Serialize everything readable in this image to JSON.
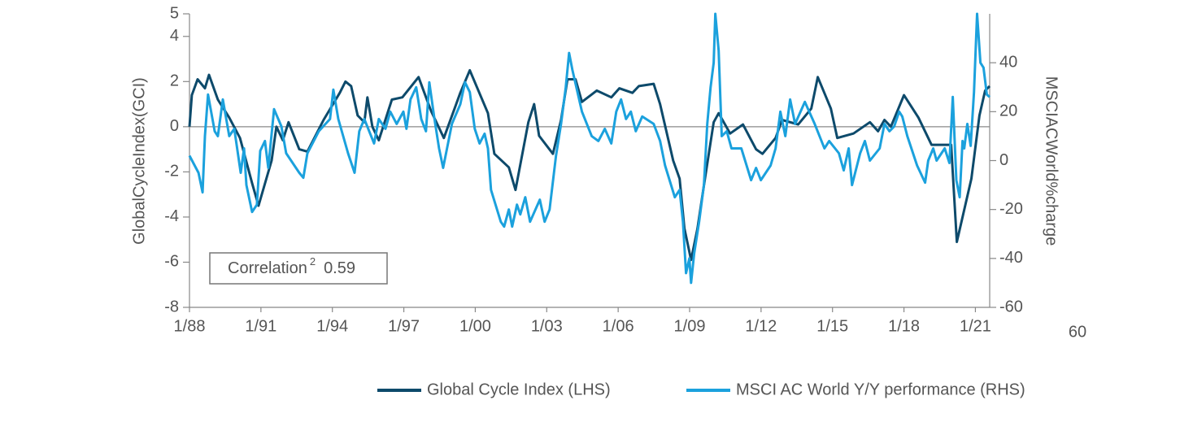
{
  "chart_data": {
    "type": "line",
    "xlim": [
      1988,
      2021.6
    ],
    "xticks": [
      {
        "value": 1988,
        "label": "1/88"
      },
      {
        "value": 1991,
        "label": "1/91"
      },
      {
        "value": 1994,
        "label": "1/94"
      },
      {
        "value": 1997,
        "label": "1/97"
      },
      {
        "value": 2000,
        "label": "1/00"
      },
      {
        "value": 2003,
        "label": "1/03"
      },
      {
        "value": 2006,
        "label": "1/06"
      },
      {
        "value": 2009,
        "label": "1/09"
      },
      {
        "value": 2012,
        "label": "1/12"
      },
      {
        "value": 2015,
        "label": "1/15"
      },
      {
        "value": 2018,
        "label": "1/18"
      },
      {
        "value": 2021,
        "label": "1/21"
      }
    ],
    "ylim": [
      -8,
      5
    ],
    "yticks": [
      -8,
      -6,
      -4,
      -2,
      0,
      2,
      4,
      5
    ],
    "y2lim": [
      -60,
      60
    ],
    "y2ticks": [
      -60,
      -40,
      -20,
      0,
      20,
      40
    ],
    "y_label": "GlobalCycleIndex(GCI)",
    "y2_label": "MSCIACWorld%charge",
    "stray_label": "60",
    "zero_line": true,
    "annotation": {
      "text": "Correlation",
      "superscript": "2",
      "value": "0.59"
    },
    "series": [
      {
        "name": "Global Cycle Index (LHS)",
        "color": "#0d4a6b",
        "axis": "y",
        "x": [
          1988.0,
          1988.1,
          1988.34,
          1988.65,
          1988.82,
          1989.19,
          1989.67,
          1990.12,
          1990.63,
          1990.9,
          1991.45,
          1991.65,
          1991.92,
          1992.16,
          1992.61,
          1992.95,
          1993.63,
          1994.31,
          1994.55,
          1994.79,
          1995.06,
          1995.34,
          1995.47,
          1995.68,
          1995.95,
          1996.5,
          1996.94,
          1997.62,
          1998.14,
          1998.68,
          1999.37,
          1999.77,
          2000.53,
          2000.8,
          2001.41,
          2001.69,
          2002.23,
          2002.47,
          2002.68,
          2003.26,
          2003.6,
          2003.87,
          2004.21,
          2004.48,
          2005.1,
          2005.71,
          2006.05,
          2006.6,
          2006.87,
          2007.49,
          2007.76,
          2008.31,
          2008.58,
          2008.78,
          2009.06,
          2009.33,
          2009.6,
          2010.01,
          2010.22,
          2010.7,
          2011.24,
          2011.79,
          2012.06,
          2012.61,
          2012.88,
          2013.56,
          2014.11,
          2014.38,
          2014.93,
          2015.2,
          2015.88,
          2016.57,
          2016.91,
          2017.18,
          2017.45,
          2018.0,
          2018.61,
          2019.16,
          2019.98,
          2020.22,
          2020.83,
          2021.17,
          2021.41,
          2021.6
        ],
        "values": [
          0,
          1.4,
          2.1,
          1.7,
          2.3,
          1.2,
          0.4,
          -0.5,
          -2.5,
          -3.5,
          -1.5,
          0,
          -0.6,
          0.2,
          -1.0,
          -1.1,
          0.3,
          1.5,
          2.0,
          1.8,
          0.5,
          0.2,
          1.3,
          0,
          -0.6,
          1.2,
          1.3,
          2.2,
          0.7,
          -0.5,
          1.5,
          2.5,
          0.6,
          -1.2,
          -1.8,
          -2.8,
          0.2,
          1.0,
          -0.4,
          -1.2,
          0.3,
          2.1,
          2.1,
          1.1,
          1.6,
          1.3,
          1.7,
          1.5,
          1.8,
          1.9,
          1.0,
          -1.5,
          -2.3,
          -4.5,
          -5.9,
          -4.5,
          -2.6,
          0.2,
          0.6,
          -0.3,
          0.1,
          -1.0,
          -1.2,
          -0.5,
          0.3,
          0.1,
          0.8,
          2.2,
          0.8,
          -0.5,
          -0.3,
          0.2,
          -0.2,
          0.3,
          0,
          1.4,
          0.4,
          -0.8,
          -0.8,
          -5.1,
          -2.3,
          0.5,
          1.6,
          1.8
        ]
      },
      {
        "name": "MSCI AC World Y/Y performance (RHS)",
        "color": "#1ba1dd",
        "axis": "y2",
        "x": [
          1988.0,
          1988.38,
          1988.55,
          1988.65,
          1988.78,
          1989.06,
          1989.19,
          1989.4,
          1989.67,
          1989.88,
          1990.15,
          1990.29,
          1990.39,
          1990.63,
          1990.83,
          1990.97,
          1991.17,
          1991.31,
          1991.55,
          1991.86,
          1992.06,
          1992.61,
          1992.78,
          1992.95,
          1993.43,
          1993.9,
          1994.04,
          1994.25,
          1994.66,
          1994.93,
          1995.13,
          1995.34,
          1995.75,
          1995.95,
          1996.23,
          1996.43,
          1996.7,
          1996.98,
          1997.11,
          1997.28,
          1997.52,
          1997.73,
          1997.93,
          1998.07,
          1998.27,
          1998.48,
          1998.65,
          1999.02,
          1999.37,
          1999.57,
          1999.77,
          1999.98,
          2000.18,
          2000.39,
          2000.53,
          2000.66,
          2001.07,
          2001.21,
          2001.41,
          2001.55,
          2001.75,
          2001.89,
          2002.1,
          2002.3,
          2002.71,
          2002.91,
          2003.12,
          2003.39,
          2003.6,
          2003.8,
          2003.94,
          2004.08,
          2004.48,
          2004.89,
          2005.17,
          2005.44,
          2005.71,
          2005.92,
          2006.12,
          2006.33,
          2006.53,
          2006.74,
          2007.01,
          2007.49,
          2007.76,
          2007.97,
          2008.38,
          2008.58,
          2008.72,
          2008.85,
          2008.99,
          2009.06,
          2009.19,
          2009.4,
          2009.6,
          2009.74,
          2009.88,
          2010.01,
          2010.08,
          2010.22,
          2010.35,
          2010.56,
          2010.76,
          2011.17,
          2011.58,
          2011.79,
          2011.99,
          2012.4,
          2012.61,
          2012.81,
          2013.02,
          2013.22,
          2013.43,
          2013.84,
          2014.25,
          2014.66,
          2014.86,
          2015.27,
          2015.47,
          2015.68,
          2015.82,
          2016.16,
          2016.36,
          2016.57,
          2016.98,
          2017.18,
          2017.39,
          2017.59,
          2017.8,
          2017.93,
          2018.14,
          2018.55,
          2018.89,
          2019.02,
          2019.23,
          2019.37,
          2019.71,
          2019.91,
          2020.05,
          2020.2,
          2020.34,
          2020.46,
          2020.53,
          2020.66,
          2020.8,
          2020.94,
          2021.07,
          2021.21,
          2021.34,
          2021.48,
          2021.6
        ],
        "values": [
          2,
          -5,
          -13,
          10,
          27,
          12,
          10,
          25,
          10,
          13,
          -5,
          5,
          -10,
          -21,
          -18,
          4,
          8,
          -3,
          21,
          14,
          3,
          -5,
          -7,
          3,
          12,
          17,
          29,
          17,
          3,
          -5,
          12,
          17,
          7,
          17,
          13,
          20,
          15,
          20,
          13,
          25,
          30,
          17,
          12,
          32,
          18,
          5,
          -3,
          15,
          23,
          32,
          28,
          13,
          7,
          11,
          5,
          -12,
          -25,
          -27,
          -20,
          -27,
          -18,
          -22,
          -15,
          -25,
          -16,
          -25,
          -20,
          2,
          15,
          30,
          44,
          37,
          20,
          10,
          8,
          13,
          7,
          20,
          25,
          17,
          20,
          12,
          18,
          15,
          8,
          -2,
          -15,
          -12,
          -25,
          -46,
          -40,
          -50,
          -38,
          -25,
          -10,
          15,
          30,
          40,
          60,
          45,
          10,
          12,
          5,
          5,
          -8,
          -3,
          -8,
          -2,
          5,
          20,
          10,
          25,
          15,
          24,
          15,
          5,
          8,
          3,
          -4,
          5,
          -10,
          3,
          8,
          0,
          5,
          15,
          12,
          14,
          20,
          18,
          10,
          -2,
          -9,
          0,
          5,
          0,
          5,
          -1,
          26,
          -8,
          -15,
          8,
          5,
          15,
          6,
          28,
          60,
          40,
          38,
          27,
          26
        ]
      }
    ]
  }
}
